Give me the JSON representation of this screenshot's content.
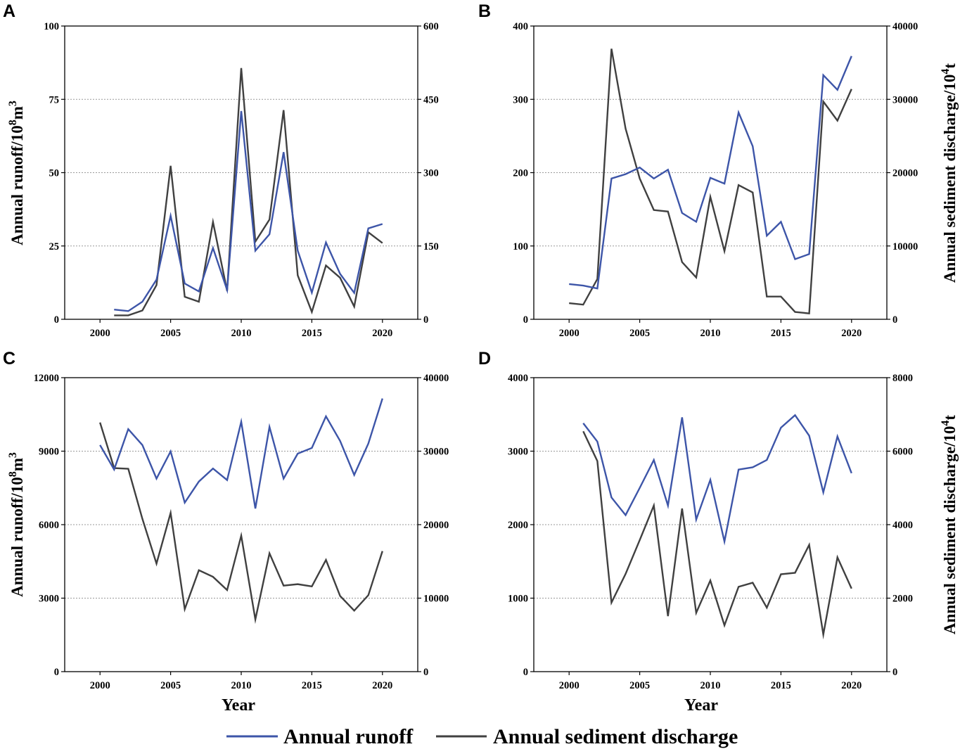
{
  "legend": {
    "runoff_label": "Annual runoff",
    "sediment_label": "Annual sediment discharge",
    "runoff_color": "#3d55a8",
    "sediment_color": "#404040"
  },
  "xlabel": "Year",
  "chart_data": [
    {
      "id": "A",
      "type": "line",
      "panel_label": "A",
      "x_ticks": [
        2000,
        2005,
        2010,
        2015,
        2020
      ],
      "xlim": [
        1997.5,
        2022.5
      ],
      "left_ylim": [
        0,
        100
      ],
      "left_ticks": [
        0,
        25,
        50,
        75,
        100
      ],
      "right_ylim": [
        0,
        600
      ],
      "right_ticks": [
        0,
        150,
        300,
        450,
        600
      ],
      "ylabel_left_text": "Annual runoff/10",
      "ylabel_left_sup1": "8",
      "ylabel_left_mid": "m",
      "ylabel_left_sup2": "3",
      "show_xlabel": false,
      "grid": true,
      "series": [
        {
          "name": "Annual runoff",
          "axis": "left",
          "color": "#3d55a8",
          "x": [
            2001,
            2002,
            2003,
            2004,
            2005,
            2006,
            2007,
            2008,
            2009,
            2010,
            2011,
            2012,
            2013,
            2014,
            2015,
            2016,
            2017,
            2018,
            2019,
            2020
          ],
          "values": [
            3.3,
            2.8,
            6.0,
            13.5,
            35.3,
            12.2,
            9.5,
            24.3,
            10.0,
            71.0,
            23.4,
            29.0,
            57.0,
            23.4,
            9.1,
            26.2,
            15.5,
            9.0,
            31.0,
            32.5
          ]
        },
        {
          "name": "Annual sediment discharge",
          "axis": "right",
          "color": "#404040",
          "x": [
            2001,
            2002,
            2003,
            2004,
            2005,
            2006,
            2007,
            2008,
            2009,
            2010,
            2011,
            2012,
            2013,
            2014,
            2015,
            2016,
            2017,
            2018,
            2019,
            2020
          ],
          "values": [
            8,
            8,
            18,
            70,
            314,
            46,
            36,
            199,
            58,
            514,
            159,
            204,
            428,
            90,
            15,
            110,
            85,
            26,
            178,
            156
          ]
        }
      ]
    },
    {
      "id": "B",
      "type": "line",
      "panel_label": "B",
      "x_ticks": [
        2000,
        2005,
        2010,
        2015,
        2020
      ],
      "xlim": [
        1997.5,
        2022.5
      ],
      "left_ylim": [
        0,
        400
      ],
      "left_ticks": [
        0,
        100,
        200,
        300,
        400
      ],
      "right_ylim": [
        0,
        40000
      ],
      "right_ticks": [
        0,
        10000,
        20000,
        30000,
        40000
      ],
      "ylabel_right_text": "Annual sediment discharge/10",
      "ylabel_right_sup": "4",
      "ylabel_right_tail": "t",
      "show_xlabel": false,
      "grid": true,
      "series": [
        {
          "name": "Annual runoff",
          "axis": "left",
          "color": "#3d55a8",
          "x": [
            2000,
            2001,
            2002,
            2003,
            2004,
            2005,
            2006,
            2007,
            2008,
            2009,
            2010,
            2011,
            2012,
            2013,
            2014,
            2015,
            2016,
            2017,
            2018,
            2019,
            2020
          ],
          "values": [
            48,
            46,
            42,
            192,
            198,
            207,
            192,
            204,
            145,
            133,
            193,
            185,
            282,
            236,
            114,
            133,
            82,
            89,
            333,
            313,
            359
          ]
        },
        {
          "name": "Annual sediment discharge",
          "axis": "right",
          "color": "#404040",
          "x": [
            2000,
            2001,
            2002,
            2003,
            2004,
            2005,
            2006,
            2007,
            2008,
            2009,
            2010,
            2011,
            2012,
            2013,
            2014,
            2015,
            2016,
            2017,
            2018,
            2019,
            2020
          ],
          "values": [
            2200,
            2000,
            5500,
            36900,
            26000,
            19200,
            14900,
            14700,
            7800,
            5700,
            16700,
            9300,
            18300,
            17300,
            3100,
            3100,
            1000,
            800,
            29700,
            27100,
            31400
          ]
        }
      ]
    },
    {
      "id": "C",
      "type": "line",
      "panel_label": "C",
      "x_ticks": [
        2000,
        2005,
        2010,
        2015,
        2020
      ],
      "xlim": [
        1997.5,
        2022.5
      ],
      "left_ylim": [
        0,
        12000
      ],
      "left_ticks": [
        0,
        3000,
        6000,
        9000,
        12000
      ],
      "right_ylim": [
        0,
        40000
      ],
      "right_ticks": [
        0,
        10000,
        20000,
        30000,
        40000
      ],
      "ylabel_left_text": "Annual runoff/10",
      "ylabel_left_sup1": "8",
      "ylabel_left_mid": "m",
      "ylabel_left_sup2": "3",
      "show_xlabel": true,
      "grid": true,
      "series": [
        {
          "name": "Annual runoff",
          "axis": "left",
          "color": "#3d55a8",
          "x": [
            2000,
            2001,
            2002,
            2003,
            2004,
            2005,
            2006,
            2007,
            2008,
            2009,
            2010,
            2011,
            2012,
            2013,
            2014,
            2015,
            2016,
            2017,
            2018,
            2019,
            2020
          ],
          "values": [
            9250,
            8250,
            9900,
            9250,
            7880,
            8990,
            6900,
            7760,
            8290,
            7820,
            10200,
            6660,
            9990,
            7880,
            8900,
            9130,
            10420,
            9420,
            8030,
            9310,
            11150
          ]
        },
        {
          "name": "Annual sediment discharge",
          "axis": "right",
          "color": "#404040",
          "x": [
            2000,
            2001,
            2002,
            2003,
            2004,
            2005,
            2006,
            2007,
            2008,
            2009,
            2010,
            2011,
            2012,
            2013,
            2014,
            2015,
            2016,
            2017,
            2018,
            2019,
            2020
          ],
          "values": [
            33900,
            27700,
            27600,
            20800,
            14700,
            21600,
            8500,
            13800,
            12900,
            11100,
            18500,
            7100,
            16100,
            11700,
            11900,
            11600,
            15200,
            10300,
            8300,
            10400,
            16400
          ]
        }
      ]
    },
    {
      "id": "D",
      "type": "line",
      "panel_label": "D",
      "x_ticks": [
        2000,
        2005,
        2010,
        2015,
        2020
      ],
      "xlim": [
        1997.5,
        2022.5
      ],
      "left_ylim": [
        0,
        4000
      ],
      "left_ticks": [
        0,
        1000,
        2000,
        3000,
        4000
      ],
      "right_ylim": [
        0,
        8000
      ],
      "right_ticks": [
        0,
        2000,
        4000,
        6000,
        8000
      ],
      "ylabel_right_text": "Annual sediment discharge/10",
      "ylabel_right_sup": "4",
      "ylabel_right_tail": "t",
      "show_xlabel": true,
      "grid": true,
      "series": [
        {
          "name": "Annual runoff",
          "axis": "left",
          "color": "#3d55a8",
          "x": [
            2001,
            2002,
            2003,
            2004,
            2005,
            2006,
            2007,
            2008,
            2009,
            2010,
            2011,
            2012,
            2013,
            2014,
            2015,
            2016,
            2017,
            2018,
            2019,
            2020
          ],
          "values": [
            3380,
            3130,
            2370,
            2130,
            2500,
            2880,
            2260,
            3460,
            2070,
            2610,
            1770,
            2750,
            2780,
            2880,
            3320,
            3490,
            3210,
            2440,
            3200,
            2700
          ]
        },
        {
          "name": "Annual sediment discharge",
          "axis": "right",
          "color": "#404040",
          "x": [
            2001,
            2002,
            2003,
            2004,
            2005,
            2006,
            2007,
            2008,
            2009,
            2010,
            2011,
            2012,
            2013,
            2014,
            2015,
            2016,
            2017,
            2018,
            2019,
            2020
          ],
          "values": [
            6540,
            5730,
            1880,
            2660,
            3580,
            4520,
            1510,
            4440,
            1600,
            2480,
            1260,
            2310,
            2420,
            1740,
            2650,
            2690,
            3450,
            1010,
            3110,
            2260
          ]
        }
      ]
    }
  ]
}
